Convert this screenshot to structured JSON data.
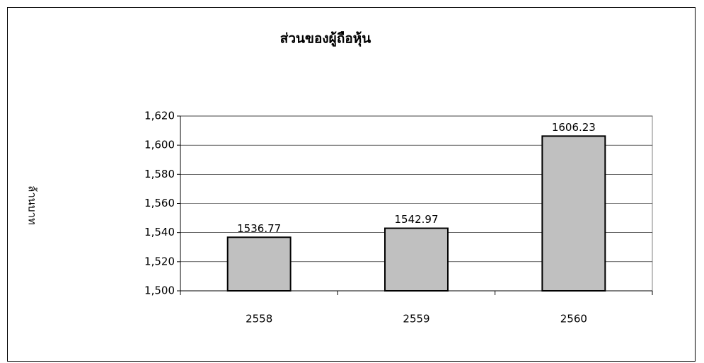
{
  "chart_data": {
    "type": "bar",
    "title": "ส่วนของผู้ถือหุ้น",
    "y_label": "ล้านบาท",
    "categories": [
      "2558",
      "2559",
      "2560"
    ],
    "values": [
      1536.77,
      1542.97,
      1606.23
    ],
    "color": "#c0c0c0",
    "ylim": [
      1500,
      1620
    ],
    "yticks": [
      {
        "value": 1500,
        "label": "1,500"
      },
      {
        "value": 1520,
        "label": "1,520"
      },
      {
        "value": 1540,
        "label": "1,540"
      },
      {
        "value": 1560,
        "label": "1,560"
      },
      {
        "value": 1580,
        "label": "1,580"
      },
      {
        "value": 1600,
        "label": "1,600"
      },
      {
        "value": 1620,
        "label": "1,620"
      }
    ],
    "grid": true
  }
}
